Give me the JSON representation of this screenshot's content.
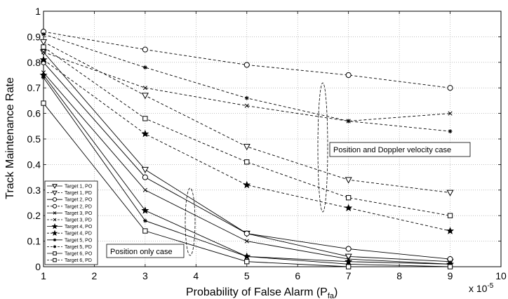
{
  "chart_data": {
    "type": "line",
    "xlabel": "Probability of False Alarm (P",
    "xlabel_sub": "fa",
    "xlabel_close": ")",
    "ylabel": "Track Maintenance Rate",
    "x_multiplier": "x 10",
    "x_multiplier_exp": "-5",
    "xlim": [
      1,
      10
    ],
    "ylim": [
      0,
      1
    ],
    "xticks": [
      "1",
      "2",
      "3",
      "4",
      "5",
      "6",
      "7",
      "8",
      "9",
      "10"
    ],
    "yticks": [
      "0",
      "0.1",
      "0.2",
      "0.3",
      "0.4",
      "0.5",
      "0.6",
      "0.7",
      "0.8",
      "0.9",
      "1"
    ],
    "grid": true,
    "legend_position": "bottom-left",
    "x": [
      1,
      3,
      5,
      7,
      9
    ],
    "series": [
      {
        "name": "Target 1, PO",
        "marker": "triangle-down",
        "style": "solid",
        "values": [
          0.84,
          0.38,
          0.13,
          0.04,
          0.02
        ]
      },
      {
        "name": "Target 1, PD",
        "marker": "triangle-down",
        "style": "dashed",
        "values": [
          0.88,
          0.67,
          0.47,
          0.34,
          0.29
        ]
      },
      {
        "name": "Target 2, PO",
        "marker": "circle",
        "style": "solid",
        "values": [
          0.8,
          0.35,
          0.13,
          0.07,
          0.03
        ]
      },
      {
        "name": "Target 2, PD",
        "marker": "circle",
        "style": "dashed",
        "values": [
          0.92,
          0.85,
          0.79,
          0.75,
          0.7
        ]
      },
      {
        "name": "Target 3, PO",
        "marker": "x",
        "style": "solid",
        "values": [
          0.76,
          0.3,
          0.1,
          0.03,
          0.01
        ]
      },
      {
        "name": "Target 3, PD",
        "marker": "x",
        "style": "dashed",
        "values": [
          0.84,
          0.7,
          0.63,
          0.57,
          0.6
        ]
      },
      {
        "name": "Target 4, PO",
        "marker": "star",
        "style": "solid",
        "values": [
          0.75,
          0.22,
          0.04,
          0.02,
          0.01
        ]
      },
      {
        "name": "Target 4, PD",
        "marker": "star",
        "style": "dashed",
        "values": [
          0.81,
          0.52,
          0.32,
          0.23,
          0.14
        ]
      },
      {
        "name": "Target 5, PO",
        "marker": "asterisk",
        "style": "solid",
        "values": [
          0.74,
          0.18,
          0.04,
          0.01,
          0.0
        ]
      },
      {
        "name": "Target 5, PD",
        "marker": "asterisk",
        "style": "dashed",
        "values": [
          0.91,
          0.78,
          0.66,
          0.57,
          0.53
        ]
      },
      {
        "name": "Target 6, PO",
        "marker": "square",
        "style": "solid",
        "values": [
          0.64,
          0.14,
          0.02,
          0.0,
          0.0
        ]
      },
      {
        "name": "Target 6, PD",
        "marker": "square",
        "style": "dashed",
        "values": [
          0.86,
          0.58,
          0.41,
          0.27,
          0.2
        ]
      }
    ],
    "annotations": [
      {
        "text": "Position and Doppler velocity case",
        "kind": "boxed-label"
      },
      {
        "text": "Position only case",
        "kind": "boxed-label"
      }
    ]
  }
}
